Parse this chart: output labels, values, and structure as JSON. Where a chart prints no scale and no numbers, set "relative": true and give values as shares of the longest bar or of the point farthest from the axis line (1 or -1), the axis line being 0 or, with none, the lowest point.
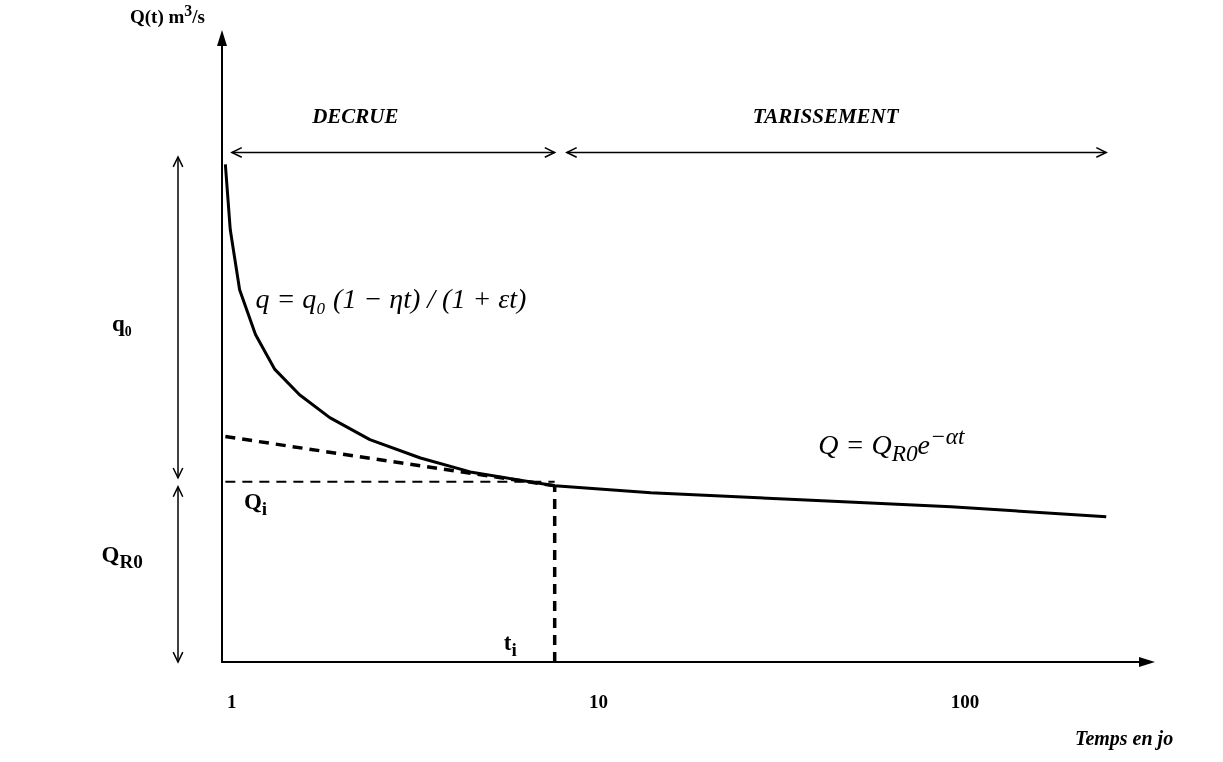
{
  "chart_data": {
    "type": "line",
    "relative": true,
    "xlabel": "Temps en jo",
    "log": "x",
    "xlim": [
      0.94,
      310
    ],
    "xticks": [
      1,
      10,
      100
    ],
    "grid": false,
    "marker": "none",
    "annotations": [
      "DECRUE",
      "TARISSEMENT",
      "q₀",
      "Q$_{i}$",
      "Q$_{R0}$",
      "t$_{i}$",
      "q = q₀ (1 − ηt) / (1 + εt)",
      "Q = Q$_{R0}$e$^{−αt}$",
      "Q(t) m$^{3}$/s"
    ],
    "series": [
      {
        "color": "#000000",
        "line_style": "solid",
        "x": [
          0.96,
          0.99,
          1.05,
          1.16,
          1.31,
          1.53,
          1.85,
          2.38,
          3.27,
          4.47,
          7.6,
          13.9,
          35.6,
          91.6,
          243
        ],
        "values": [
          1,
          0.869,
          0.748,
          0.658,
          0.588,
          0.537,
          0.491,
          0.447,
          0.41,
          0.382,
          0.354,
          0.34,
          0.326,
          0.312,
          0.292
        ]
      },
      {
        "color": "#000000",
        "line_style": "dashed",
        "x": [
          0.96,
          7.6
        ],
        "values": [
          0.453,
          0.354
        ]
      },
      {
        "color": "#000000",
        "line_style": "dashed",
        "x": [
          0.96,
          7.6
        ],
        "values": [
          0.362,
          0.362
        ]
      },
      {
        "color": "#000000",
        "line_style": "dashed",
        "x": [
          7.6,
          7.6
        ],
        "values": [
          0,
          0.354
        ]
      }
    ]
  }
}
